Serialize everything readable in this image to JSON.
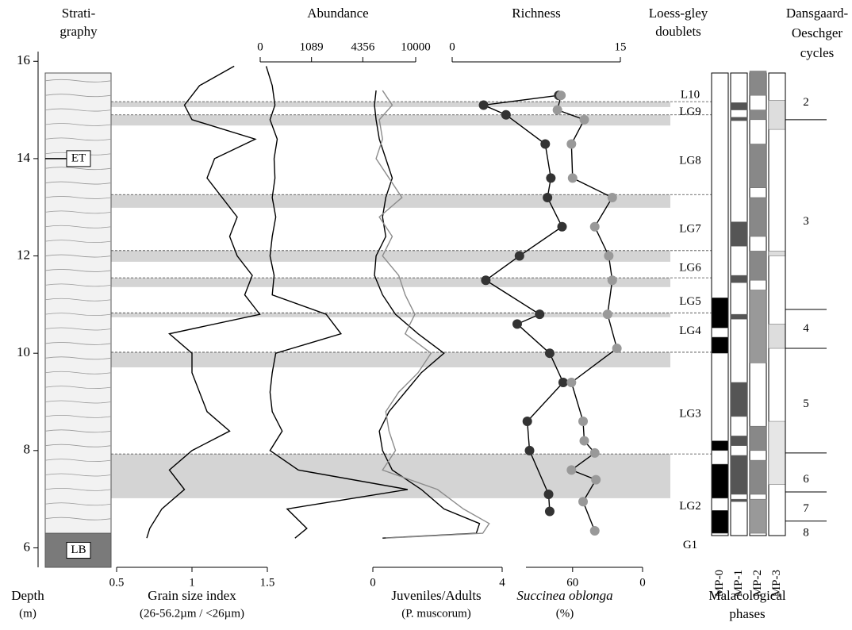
{
  "chart_data": [
    {
      "type": "depth-axis",
      "label": "Depth",
      "unit": "(m)",
      "ylim": [
        5.6,
        16.2
      ],
      "yticks": [
        6,
        8,
        10,
        12,
        14,
        16
      ],
      "gley_horizons": [
        [
          15.17,
          15.06
        ],
        [
          14.9,
          14.68
        ],
        [
          13.26,
          12.99
        ],
        [
          12.11,
          11.88
        ],
        [
          11.55,
          11.36
        ],
        [
          10.83,
          10.74
        ],
        [
          10.02,
          9.71
        ],
        [
          7.93,
          7.02
        ]
      ]
    },
    {
      "type": "stratigraphy",
      "title": [
        "Strati-",
        "graphy"
      ],
      "labels": [
        "ET",
        "LB"
      ]
    },
    {
      "type": "line",
      "xlabel": "Grain size index",
      "xsublabel": "(26-56.2µm / <26µm)",
      "axis": "bottom",
      "xlim": [
        0.5,
        1.5
      ],
      "xticks": [
        0.5,
        1,
        1.5
      ],
      "depth": [
        15.9,
        15.5,
        15.1,
        14.8,
        14.4,
        14.0,
        13.6,
        13.2,
        12.8,
        12.4,
        12.0,
        11.6,
        11.2,
        10.8,
        10.4,
        10.0,
        9.6,
        9.2,
        8.8,
        8.4,
        8.0,
        7.6,
        7.2,
        6.8,
        6.4,
        6.2
      ],
      "series": [
        {
          "color": "#000000",
          "values": [
            1.28,
            1.05,
            0.95,
            1.0,
            1.42,
            1.15,
            1.1,
            1.2,
            1.3,
            1.25,
            1.3,
            1.4,
            1.35,
            1.45,
            0.85,
            1.0,
            1.0,
            1.05,
            1.1,
            1.25,
            1.0,
            0.85,
            0.95,
            0.8,
            0.72,
            0.7
          ]
        }
      ]
    },
    {
      "type": "line",
      "title": "Abundance",
      "axis": "top",
      "scale": "sqrt",
      "xlim": [
        0,
        10000
      ],
      "xticks": [
        0,
        1089,
        4356,
        10000
      ],
      "depth": [
        15.9,
        15.5,
        15.1,
        14.8,
        14.4,
        14.0,
        13.6,
        13.2,
        12.8,
        12.4,
        12.0,
        11.6,
        11.2,
        10.8,
        10.4,
        10.0,
        9.6,
        9.2,
        8.8,
        8.4,
        8.0,
        7.6,
        7.2,
        6.8,
        6.4,
        6.2
      ],
      "series": [
        {
          "color": "#000000",
          "values": [
            15,
            60,
            90,
            40,
            120,
            80,
            90,
            60,
            100,
            60,
            40,
            80,
            60,
            1800,
            2700,
            100,
            60,
            40,
            60,
            200,
            40,
            600,
            9000,
            300,
            900,
            500
          ]
        }
      ]
    },
    {
      "type": "line",
      "xlabel": "Juveniles/Adults",
      "xsublabel": "(P. muscorum)",
      "axis": "bottom",
      "xlim": [
        0,
        4
      ],
      "xticks": [
        0,
        4
      ],
      "depth": [
        15.4,
        15.1,
        14.8,
        14.4,
        14.0,
        13.6,
        13.2,
        12.8,
        12.4,
        12.0,
        11.6,
        11.2,
        10.8,
        10.4,
        10.0,
        9.6,
        9.2,
        8.8,
        8.4,
        8.0,
        7.6,
        7.2,
        6.8,
        6.5,
        6.3,
        6.2
      ],
      "series": [
        {
          "color": "#000000",
          "values": [
            0.1,
            0.05,
            0.1,
            0.2,
            0.4,
            0.6,
            0.4,
            0.3,
            0.4,
            0.1,
            0.05,
            0.3,
            0.7,
            1.4,
            2.2,
            1.5,
            1.0,
            0.5,
            0.2,
            0.3,
            0.6,
            1.5,
            2.2,
            3.3,
            3.2,
            0.3
          ]
        },
        {
          "color": "#8c8c8c",
          "values": [
            0.3,
            0.6,
            0.2,
            0.3,
            0.1,
            0.5,
            0.9,
            0.2,
            0.6,
            0.3,
            0.8,
            1.0,
            1.3,
            1.0,
            1.8,
            1.4,
            0.8,
            0.4,
            0.5,
            0.7,
            0.3,
            2.0,
            2.8,
            3.6,
            3.4,
            0.4
          ]
        }
      ]
    },
    {
      "type": "line",
      "title": "Richness",
      "axis": "top",
      "markers": true,
      "xlim": [
        0,
        15
      ],
      "xticks": [
        0,
        15
      ],
      "depth": [
        15.3,
        15.1,
        14.9,
        14.3,
        13.6,
        13.2,
        12.6,
        12.0,
        11.5,
        10.8,
        10.6,
        10.0,
        9.4,
        8.6,
        8.0,
        7.1,
        6.75
      ],
      "series": [
        {
          "color": "#333333",
          "values": [
            9.5,
            2.8,
            4.8,
            8.3,
            8.8,
            8.5,
            9.8,
            6.0,
            3.0,
            7.8,
            5.8,
            8.7,
            9.9,
            6.7,
            6.9,
            8.6,
            8.7
          ]
        }
      ]
    },
    {
      "type": "line",
      "xlabel": "Succinea oblonga",
      "xsublabel": "(%)",
      "axis": "bottom",
      "markers": true,
      "xlim": [
        100,
        0
      ],
      "xticks": [
        60,
        0
      ],
      "depth": [
        15.3,
        15.0,
        14.8,
        14.3,
        13.6,
        13.2,
        12.6,
        12.0,
        11.5,
        10.8,
        10.1,
        9.4,
        8.6,
        8.2,
        7.95,
        7.6,
        7.4,
        6.95,
        6.35
      ],
      "series": [
        {
          "color": "#999999",
          "values": [
            70,
            73,
            50,
            61,
            60,
            26,
            41,
            29,
            26,
            30,
            22,
            61,
            51,
            50,
            41,
            61,
            40,
            51,
            41
          ]
        }
      ]
    },
    {
      "type": "units",
      "title": [
        "Loess-gley",
        "doublets"
      ],
      "labels": [
        "L10",
        "LG9",
        "LG8",
        "LG7",
        "LG6",
        "LG5",
        "LG4",
        "LG3",
        "LG2",
        "G1"
      ]
    },
    {
      "type": "phases",
      "labels": [
        "MP-0",
        "MP-1",
        "MP-2",
        "MP-3"
      ],
      "xlabel": [
        "Malacological",
        "phases"
      ]
    },
    {
      "type": "cycles",
      "title": [
        "Dansgaard-",
        "Oeschger",
        "cycles"
      ],
      "labels": [
        2,
        3,
        4,
        5,
        6,
        7,
        8
      ]
    }
  ]
}
